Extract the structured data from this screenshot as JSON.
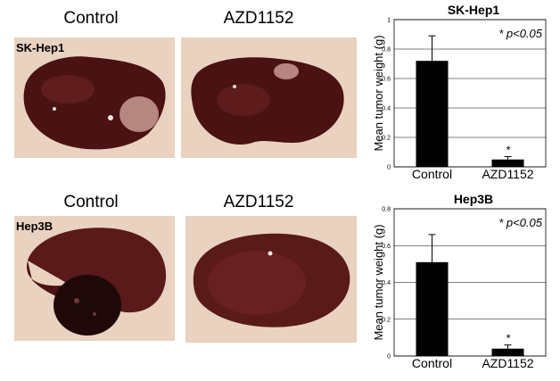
{
  "rows": [
    {
      "id": "sk",
      "line": "SK-Hep1",
      "col_left": "Control",
      "col_right": "AZD1152"
    },
    {
      "id": "hep",
      "line": "Hep3B",
      "col_left": "Control",
      "col_right": "AZD1152"
    }
  ],
  "colors": {
    "bar": "#000000",
    "tissue_bg": "#e9d2bf",
    "liver": "#4a1212"
  },
  "chart_data": [
    {
      "type": "bar",
      "title": "SK-Hep1",
      "categories": [
        "Control",
        "AZD1152"
      ],
      "values": [
        0.72,
        0.05
      ],
      "errors": [
        0.17,
        0.02
      ],
      "sig_marks": [
        "",
        "*"
      ],
      "annotation": "* p<0.05",
      "ylabel": "Mean tumor weight (g)",
      "ylim": [
        0,
        1
      ],
      "yticks": [
        "0",
        "0.2",
        "0.4",
        "0.6",
        "0.8",
        "1"
      ],
      "ytick_values": [
        0,
        0.2,
        0.4,
        0.6,
        0.8,
        1
      ],
      "grid": true
    },
    {
      "type": "bar",
      "title": "Hep3B",
      "categories": [
        "Control",
        "AZD1152"
      ],
      "values": [
        0.51,
        0.04
      ],
      "errors": [
        0.15,
        0.02
      ],
      "sig_marks": [
        "",
        "*"
      ],
      "annotation": "* p<0.05",
      "ylabel": "Mean tumor weight (g)",
      "ylim": [
        0,
        0.8
      ],
      "yticks": [
        "0",
        "0.2",
        "0.4",
        "0.6",
        "0.8"
      ],
      "ytick_values": [
        0,
        0.2,
        0.4,
        0.6,
        0.8
      ],
      "grid": true
    }
  ]
}
